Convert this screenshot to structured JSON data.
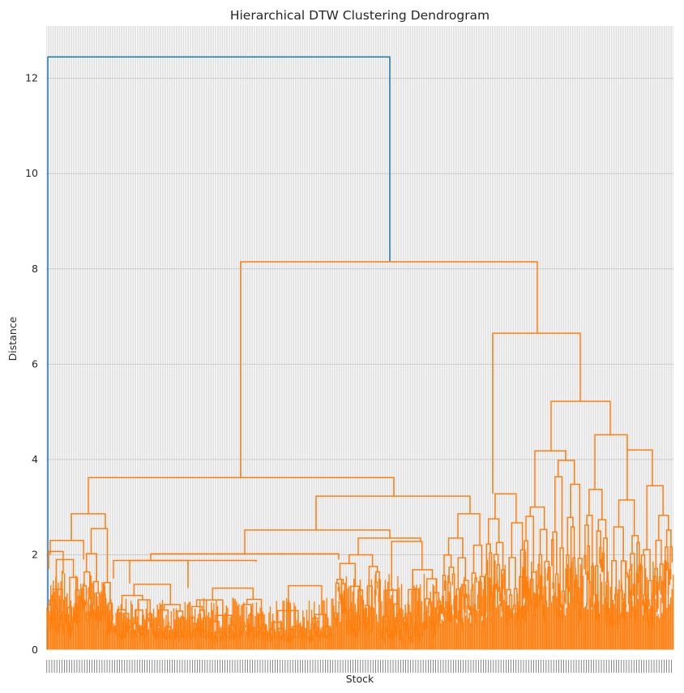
{
  "chart_data": {
    "type": "dendrogram",
    "title": "Hierarchical DTW Clustering Dendrogram",
    "xlabel": "Stock",
    "ylabel": "Distance",
    "ylim": [
      0,
      13.1
    ],
    "y_ticks": [
      0,
      2,
      4,
      6,
      8,
      10,
      12
    ],
    "grid": true,
    "colors": {
      "root_link": "#1f77b4",
      "cluster_links": "#ff7f0e",
      "grid": "#cccccc",
      "background": "#ffffff"
    },
    "leaf_count_approx": 500,
    "main_merges": [
      {
        "height": 12.45,
        "description_of_children": [
          "single leaf (far left)",
          "main cluster"
        ]
      },
      {
        "height": 8.15,
        "children_heights": [
          3.62,
          6.65
        ]
      },
      {
        "height": 6.65,
        "children_heights": [
          3.28,
          5.22
        ]
      },
      {
        "height": 5.22,
        "children_heights": [
          4.18,
          4.52
        ]
      },
      {
        "height": 4.52,
        "children_heights": [
          3.37,
          4.2
        ]
      },
      {
        "height": 4.18,
        "children_heights": [
          3.98,
          3.02
        ]
      },
      {
        "height": 3.62,
        "children_heights": [
          2.86,
          3.23
        ]
      },
      {
        "height": 3.23,
        "children_heights": [
          2.52,
          2.86
        ]
      },
      {
        "height": 2.86,
        "children_heights": [
          2.3,
          2.55
        ]
      }
    ]
  }
}
